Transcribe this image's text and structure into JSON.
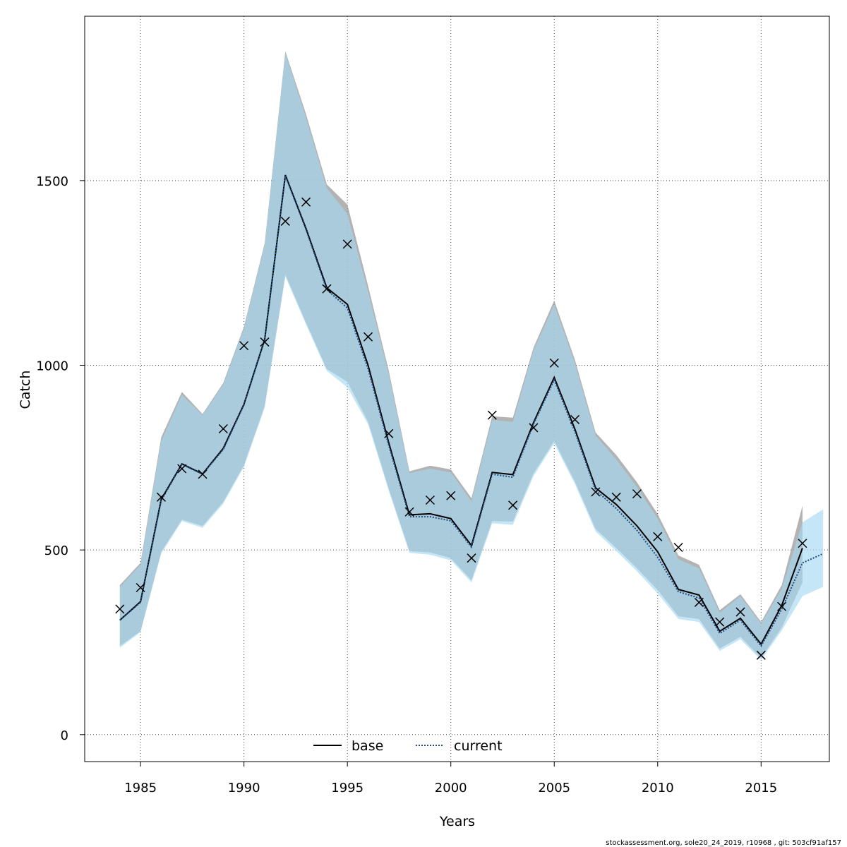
{
  "chart_data": {
    "type": "line",
    "title": "",
    "xlabel": "Years",
    "ylabel": "Catch",
    "xlim": [
      1982.3,
      2018.3
    ],
    "ylim": [
      -73,
      1945
    ],
    "x_ticks": [
      "1985",
      "1990",
      "1995",
      "2000",
      "2005",
      "2010",
      "2015"
    ],
    "y_ticks": [
      "0",
      "500",
      "1000",
      "1500"
    ],
    "grid": true,
    "legend_position": "bottom-center",
    "colors": {
      "base_line": "#000000",
      "base_band": "#999999",
      "current_line": "#1c4f86",
      "current_band": "#a6d8f2",
      "points": "#000000"
    },
    "series": [
      {
        "name": "base",
        "years": [
          1984,
          1985,
          1986,
          1987,
          1988,
          1989,
          1990,
          1991,
          1992,
          1993,
          1994,
          1995,
          1996,
          1997,
          1998,
          1999,
          2000,
          2001,
          2002,
          2003,
          2004,
          2005,
          2006,
          2007,
          2008,
          2009,
          2010,
          2011,
          2012,
          2013,
          2014,
          2015,
          2016,
          2017
        ],
        "values": [
          310,
          360,
          637,
          733,
          706,
          775,
          895,
          1070,
          1515,
          1370,
          1210,
          1165,
          1000,
          790,
          595,
          598,
          585,
          512,
          710,
          704,
          845,
          967,
          827,
          668,
          623,
          565,
          495,
          393,
          378,
          280,
          315,
          245,
          350,
          505
        ],
        "lower": [
          240,
          280,
          495,
          582,
          565,
          630,
          730,
          890,
          1245,
          1115,
          990,
          955,
          847,
          665,
          497,
          493,
          478,
          418,
          578,
          577,
          707,
          795,
          685,
          557,
          505,
          450,
          392,
          320,
          313,
          233,
          265,
          207,
          290,
          412
        ],
        "upper": [
          405,
          465,
          805,
          928,
          868,
          952,
          1105,
          1330,
          1850,
          1680,
          1490,
          1435,
          1215,
          985,
          713,
          728,
          718,
          640,
          862,
          858,
          1048,
          1175,
          1015,
          818,
          757,
          683,
          597,
          485,
          460,
          337,
          380,
          305,
          405,
          620
        ]
      },
      {
        "name": "current",
        "years": [
          1984,
          1985,
          1986,
          1987,
          1988,
          1989,
          1990,
          1991,
          1992,
          1993,
          1994,
          1995,
          1996,
          1997,
          1998,
          1999,
          2000,
          2001,
          2002,
          2003,
          2004,
          2005,
          2006,
          2007,
          2008,
          2009,
          2010,
          2011,
          2012,
          2013,
          2014,
          2015,
          2016,
          2017,
          2018
        ],
        "values": [
          310,
          358,
          634,
          732,
          705,
          772,
          893,
          1068,
          1513,
          1367,
          1205,
          1155,
          990,
          783,
          590,
          590,
          579,
          508,
          705,
          697,
          841,
          960,
          820,
          662,
          612,
          553,
          480,
          387,
          370,
          274,
          310,
          240,
          340,
          465,
          490
        ],
        "lower": [
          235,
          277,
          490,
          578,
          560,
          625,
          725,
          885,
          1240,
          1110,
          985,
          940,
          840,
          660,
          492,
          487,
          472,
          412,
          572,
          568,
          700,
          788,
          678,
          550,
          497,
          442,
          382,
          313,
          305,
          227,
          258,
          202,
          282,
          375,
          400
        ],
        "upper": [
          400,
          460,
          795,
          920,
          865,
          948,
          1100,
          1325,
          1845,
          1670,
          1480,
          1410,
          1200,
          975,
          708,
          720,
          710,
          632,
          852,
          847,
          1040,
          1165,
          1005,
          810,
          745,
          670,
          585,
          475,
          450,
          330,
          375,
          300,
          395,
          575,
          610
        ]
      }
    ],
    "points": {
      "name": "observed",
      "years": [
        1984,
        1985,
        1986,
        1987,
        1988,
        1989,
        1990,
        1991,
        1992,
        1993,
        1994,
        1995,
        1996,
        1997,
        1998,
        1999,
        2000,
        2001,
        2002,
        2003,
        2004,
        2005,
        2006,
        2007,
        2008,
        2009,
        2010,
        2011,
        2012,
        2013,
        2014,
        2015,
        2016,
        2017
      ],
      "values": [
        340,
        398,
        643,
        720,
        705,
        828,
        1053,
        1063,
        1390,
        1442,
        1207,
        1328,
        1077,
        815,
        603,
        635,
        647,
        478,
        865,
        621,
        831,
        1006,
        853,
        657,
        643,
        652,
        536,
        507,
        358,
        305,
        332,
        215,
        347,
        518
      ]
    },
    "legend": [
      {
        "label": "base",
        "style": "solid"
      },
      {
        "label": "current",
        "style": "dotted"
      }
    ]
  },
  "footer_text": "stockassessment.org, sole20_24_2019, r10968 , git: 503cf91af157"
}
